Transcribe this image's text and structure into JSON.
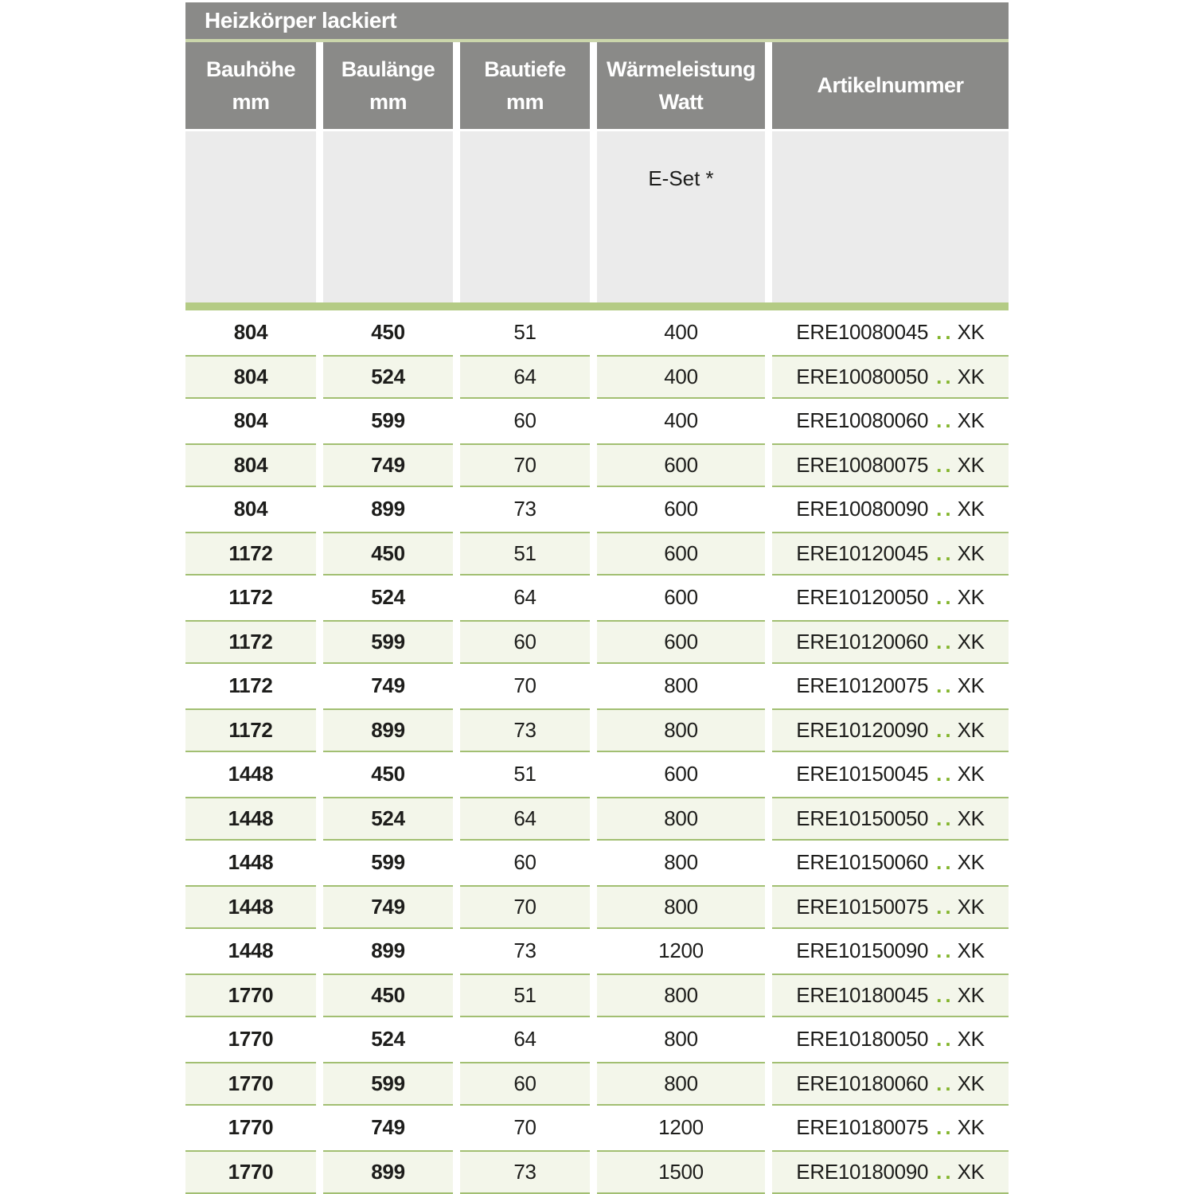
{
  "colors": {
    "header-gray": "#8a8a88",
    "divider-green": "#cbd6ab",
    "subheader-gray": "#ebebeb",
    "bar-green": "#b4cb85",
    "row-shaded-bg": "#f3f6ea",
    "row-border-green": "#a2bf72",
    "dot-green": "#83b52c",
    "text-dark": "#1d1d1b"
  },
  "table": {
    "title": "Heizkörper lackiert",
    "columns": [
      {
        "label": "Bauhöhe",
        "unit": "mm"
      },
      {
        "label": "Baulänge",
        "unit": "mm"
      },
      {
        "label": "Bautiefe",
        "unit": "mm"
      },
      {
        "label": "Wärmeleistung",
        "unit": "Watt"
      },
      {
        "label": "Artikelnummer",
        "unit": ""
      }
    ],
    "subheader": {
      "eset_label": "E-Set *"
    },
    "artikel_dots": "..",
    "artikel_suffix": "XK",
    "rows": [
      {
        "bauhoehe": "804",
        "baulaenge": "450",
        "bautiefe": "51",
        "watt": "400",
        "artikel": "ERE10080045"
      },
      {
        "bauhoehe": "804",
        "baulaenge": "524",
        "bautiefe": "64",
        "watt": "400",
        "artikel": "ERE10080050"
      },
      {
        "bauhoehe": "804",
        "baulaenge": "599",
        "bautiefe": "60",
        "watt": "400",
        "artikel": "ERE10080060"
      },
      {
        "bauhoehe": "804",
        "baulaenge": "749",
        "bautiefe": "70",
        "watt": "600",
        "artikel": "ERE10080075"
      },
      {
        "bauhoehe": "804",
        "baulaenge": "899",
        "bautiefe": "73",
        "watt": "600",
        "artikel": "ERE10080090"
      },
      {
        "bauhoehe": "1172",
        "baulaenge": "450",
        "bautiefe": "51",
        "watt": "600",
        "artikel": "ERE10120045"
      },
      {
        "bauhoehe": "1172",
        "baulaenge": "524",
        "bautiefe": "64",
        "watt": "600",
        "artikel": "ERE10120050"
      },
      {
        "bauhoehe": "1172",
        "baulaenge": "599",
        "bautiefe": "60",
        "watt": "600",
        "artikel": "ERE10120060"
      },
      {
        "bauhoehe": "1172",
        "baulaenge": "749",
        "bautiefe": "70",
        "watt": "800",
        "artikel": "ERE10120075"
      },
      {
        "bauhoehe": "1172",
        "baulaenge": "899",
        "bautiefe": "73",
        "watt": "800",
        "artikel": "ERE10120090"
      },
      {
        "bauhoehe": "1448",
        "baulaenge": "450",
        "bautiefe": "51",
        "watt": "600",
        "artikel": "ERE10150045"
      },
      {
        "bauhoehe": "1448",
        "baulaenge": "524",
        "bautiefe": "64",
        "watt": "800",
        "artikel": "ERE10150050"
      },
      {
        "bauhoehe": "1448",
        "baulaenge": "599",
        "bautiefe": "60",
        "watt": "800",
        "artikel": "ERE10150060"
      },
      {
        "bauhoehe": "1448",
        "baulaenge": "749",
        "bautiefe": "70",
        "watt": "800",
        "artikel": "ERE10150075"
      },
      {
        "bauhoehe": "1448",
        "baulaenge": "899",
        "bautiefe": "73",
        "watt": "1200",
        "artikel": "ERE10150090"
      },
      {
        "bauhoehe": "1770",
        "baulaenge": "450",
        "bautiefe": "51",
        "watt": "800",
        "artikel": "ERE10180045"
      },
      {
        "bauhoehe": "1770",
        "baulaenge": "524",
        "bautiefe": "64",
        "watt": "800",
        "artikel": "ERE10180050"
      },
      {
        "bauhoehe": "1770",
        "baulaenge": "599",
        "bautiefe": "60",
        "watt": "800",
        "artikel": "ERE10180060"
      },
      {
        "bauhoehe": "1770",
        "baulaenge": "749",
        "bautiefe": "70",
        "watt": "1200",
        "artikel": "ERE10180075"
      },
      {
        "bauhoehe": "1770",
        "baulaenge": "899",
        "bautiefe": "73",
        "watt": "1500",
        "artikel": "ERE10180090"
      }
    ]
  }
}
